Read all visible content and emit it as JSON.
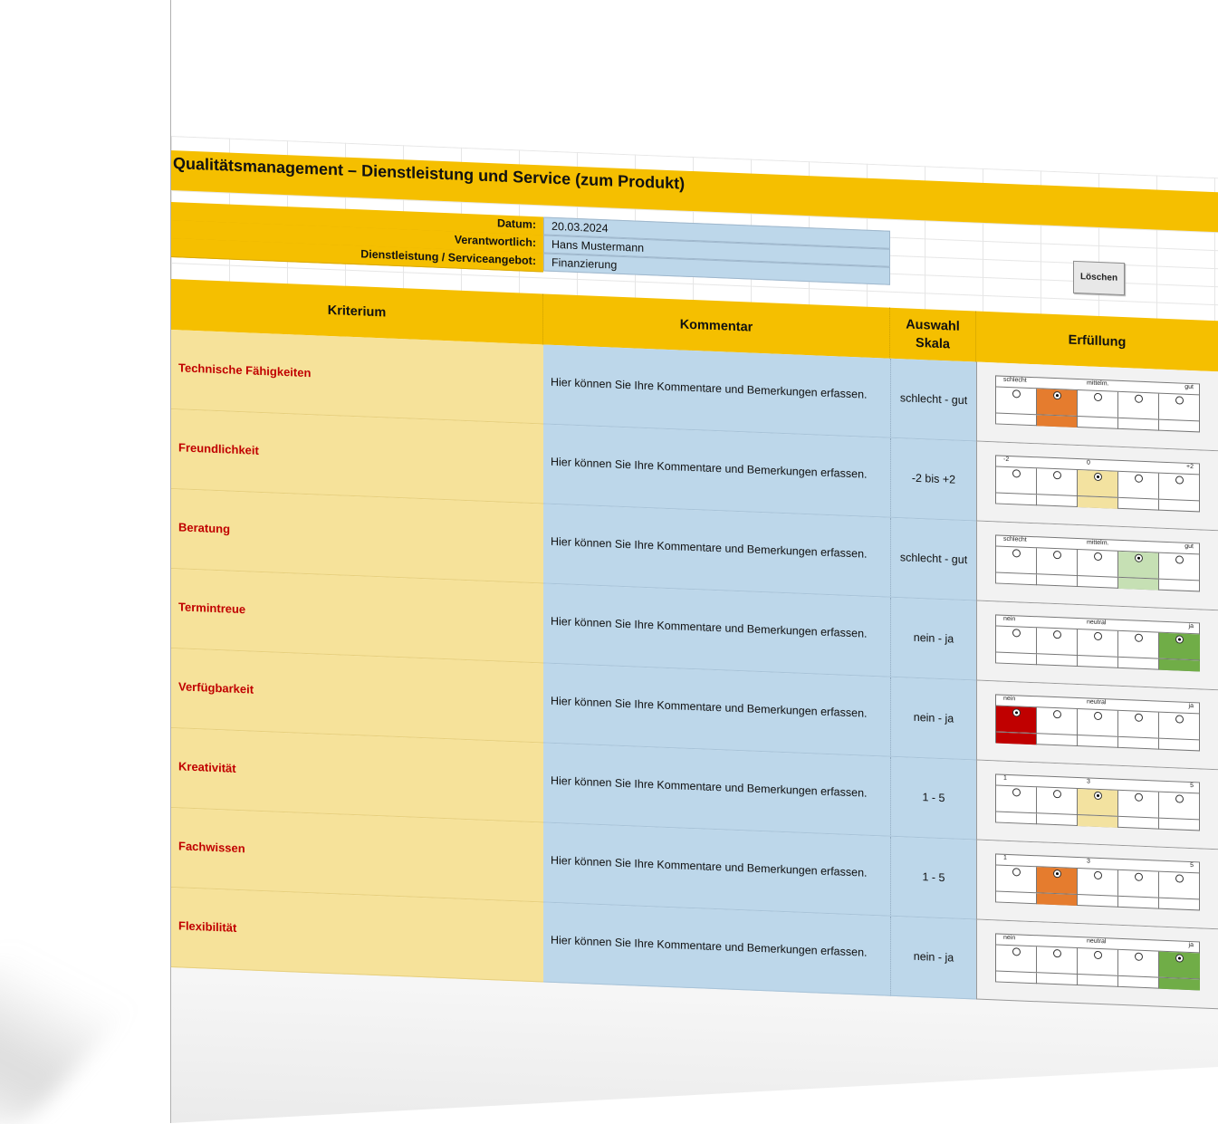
{
  "title": "Qualitätsmanagement – Dienstleistung und Service (zum Produkt)",
  "info": [
    {
      "label": "Datum:",
      "value": "20.03.2024"
    },
    {
      "label": "Verantwortlich:",
      "value": "Hans Mustermann"
    },
    {
      "label": "Dienstleistung / Serviceangebot:",
      "value": "Finanzierung"
    }
  ],
  "button_label": "Löschen",
  "headers": {
    "kriterium": "Kriterium",
    "kommentar": "Kommentar",
    "skala_line1": "Auswahl",
    "skala_line2": "Skala",
    "erfuellung": "Erfüllung"
  },
  "rows": [
    {
      "kriterium": "Technische Fähigkeiten",
      "kommentar": "Hier können Sie Ihre Kommentare und Bemerkungen erfassen.",
      "skala": "schlecht - gut",
      "labels": [
        "schlecht",
        "mittelm.",
        "gut"
      ],
      "selected": 2,
      "color": "#e57c2e"
    },
    {
      "kriterium": "Freundlichkeit",
      "kommentar": "Hier können Sie Ihre Kommentare und Bemerkungen erfassen.",
      "skala": "-2 bis +2",
      "labels": [
        "-2",
        "0",
        "+2"
      ],
      "selected": 3,
      "color": "#f3e2a0"
    },
    {
      "kriterium": "Beratung",
      "kommentar": "Hier können Sie Ihre Kommentare und Bemerkungen erfassen.",
      "skala": "schlecht - gut",
      "labels": [
        "schlecht",
        "mittelm.",
        "gut"
      ],
      "selected": 4,
      "color": "#c6e0b4"
    },
    {
      "kriterium": "Termintreue",
      "kommentar": "Hier können Sie Ihre Kommentare und Bemerkungen erfassen.",
      "skala": "nein - ja",
      "labels": [
        "nein",
        "neutral",
        "ja"
      ],
      "selected": 5,
      "color": "#70ad47"
    },
    {
      "kriterium": "Verfügbarkeit",
      "kommentar": "Hier können Sie Ihre Kommentare und Bemerkungen erfassen.",
      "skala": "nein - ja",
      "labels": [
        "nein",
        "neutral",
        "ja"
      ],
      "selected": 1,
      "color": "#c00000"
    },
    {
      "kriterium": "Kreativität",
      "kommentar": "Hier können Sie Ihre Kommentare und Bemerkungen erfassen.",
      "skala": "1 - 5",
      "labels": [
        "1",
        "3",
        "5"
      ],
      "selected": 3,
      "color": "#f3e2a0"
    },
    {
      "kriterium": "Fachwissen",
      "kommentar": "Hier können Sie Ihre Kommentare und Bemerkungen erfassen.",
      "skala": "1 - 5",
      "labels": [
        "1",
        "3",
        "5"
      ],
      "selected": 2,
      "color": "#e57c2e"
    },
    {
      "kriterium": "Flexibilität",
      "kommentar": "Hier können Sie Ihre Kommentare und Bemerkungen erfassen.",
      "skala": "nein - ja",
      "labels": [
        "nein",
        "neutral",
        "ja"
      ],
      "selected": 5,
      "color": "#70ad47"
    }
  ]
}
